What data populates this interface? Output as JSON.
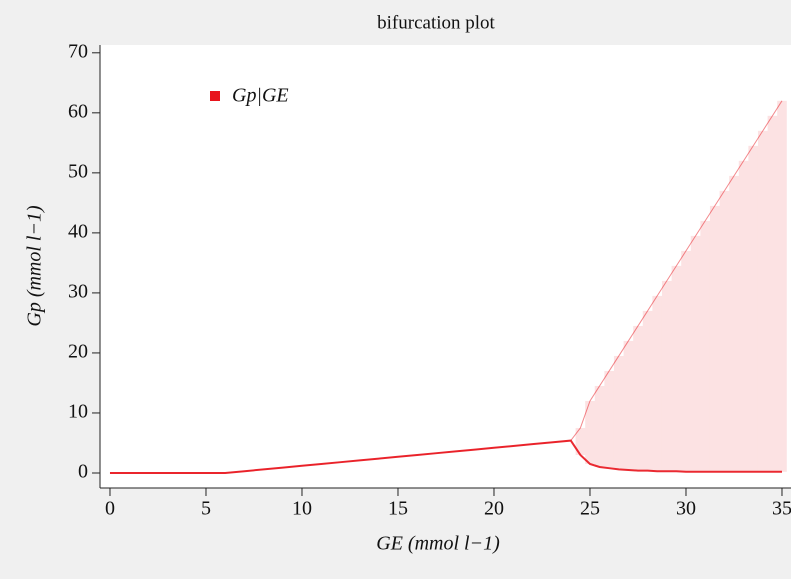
{
  "chart_data": {
    "type": "range",
    "title": "bifurcation plot",
    "xlabel": "GE (mmol l−1)",
    "ylabel": "Gp (mmol l−1)",
    "x": [
      0,
      1,
      2,
      3,
      4,
      5,
      6,
      7,
      8,
      9,
      10,
      11,
      12,
      13,
      14,
      15,
      16,
      17,
      18,
      19,
      20,
      21,
      22,
      23,
      24,
      24.5,
      25,
      25.5,
      26,
      26.5,
      27,
      27.5,
      28,
      28.5,
      29,
      29.5,
      30,
      30.5,
      31,
      31.5,
      32,
      32.5,
      33,
      33.5,
      34,
      34.5,
      35
    ],
    "series": [
      {
        "name": "Gp|GE",
        "color": "#e8141c",
        "values": [
          0,
          0,
          0,
          0,
          0,
          0,
          0,
          0.3,
          0.6,
          0.9,
          1.2,
          1.5,
          1.8,
          2.1,
          2.4,
          2.7,
          3.0,
          3.3,
          3.6,
          3.9,
          4.2,
          4.5,
          4.8,
          5.1,
          5.4,
          7.5,
          12,
          14.5,
          17,
          19.5,
          22,
          24.5,
          27,
          29.5,
          32,
          34.5,
          37,
          39.5,
          42,
          44.5,
          47,
          49.5,
          52,
          54.5,
          57,
          59.5,
          62
        ],
        "low": [
          0,
          0,
          0,
          0,
          0,
          0,
          0,
          0.3,
          0.6,
          0.9,
          1.2,
          1.5,
          1.8,
          2.1,
          2.4,
          2.7,
          3.0,
          3.3,
          3.6,
          3.9,
          4.2,
          4.5,
          4.8,
          5.1,
          5.4,
          3,
          1.5,
          1,
          0.8,
          0.6,
          0.5,
          0.4,
          0.4,
          0.3,
          0.3,
          0.3,
          0.2,
          0.2,
          0.2,
          0.2,
          0.2,
          0.2,
          0.2,
          0.2,
          0.2,
          0.2,
          0.2
        ]
      }
    ],
    "xlim": [
      -0.52,
      35.5
    ],
    "ylim": [
      -2.5,
      71.3
    ],
    "xticks": [
      0,
      5,
      10,
      15,
      20,
      25,
      30,
      35
    ],
    "yticks": [
      0,
      10,
      20,
      30,
      40,
      50,
      60,
      70
    ],
    "legend": "upper-left"
  }
}
